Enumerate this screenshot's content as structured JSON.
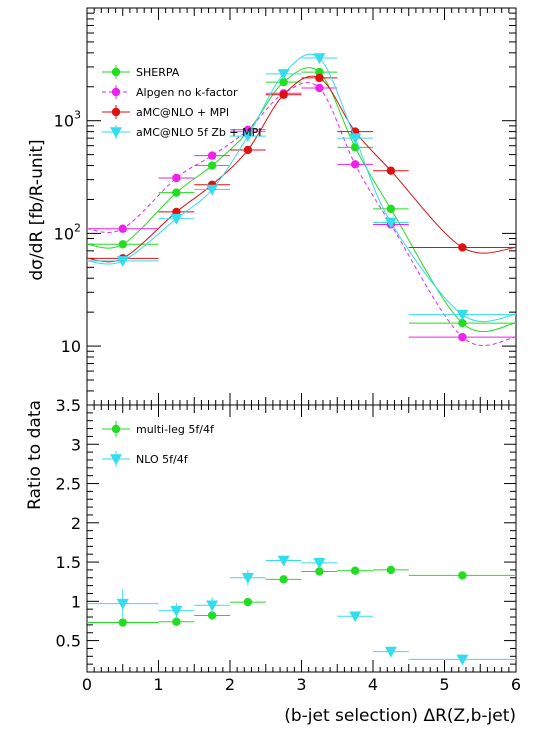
{
  "chart_data": [
    {
      "type": "scatter",
      "panel": "main",
      "ylabel": "dσ/dR [fb/R-unit]",
      "yscale": "log",
      "xlim": [
        0,
        6
      ],
      "ylim": [
        3,
        10000
      ],
      "yticks": [
        {
          "value": 10,
          "label": "10"
        },
        {
          "value": 100,
          "label": "10²"
        },
        {
          "value": 1000,
          "label": "10³"
        }
      ],
      "legend_position": "top-left",
      "series": [
        {
          "name": "SHERPA",
          "color": "#22dd22",
          "marker": "circle",
          "line": "solid",
          "x": [
            0.5,
            1.25,
            1.75,
            2.25,
            2.75,
            3.25,
            3.75,
            4.25,
            5.25
          ],
          "xerr": [
            0.5,
            0.25,
            0.25,
            0.25,
            0.25,
            0.25,
            0.25,
            0.25,
            0.75
          ],
          "y": [
            80,
            230,
            400,
            800,
            2200,
            2700,
            580,
            165,
            16
          ]
        },
        {
          "name": "Alpgen no k-factor",
          "color": "#ee22ee",
          "marker": "circle",
          "line": "dashed",
          "x": [
            0.5,
            1.25,
            1.75,
            2.25,
            2.75,
            3.25,
            3.75,
            4.25,
            5.25
          ],
          "xerr": [
            0.5,
            0.25,
            0.25,
            0.25,
            0.25,
            0.25,
            0.25,
            0.25,
            0.75
          ],
          "y": [
            110,
            310,
            490,
            830,
            1750,
            1950,
            410,
            120,
            12
          ]
        },
        {
          "name": "aMC@NLO + MPI",
          "color": "#dd1111",
          "marker": "circle",
          "line": "solid",
          "x": [
            0.5,
            1.25,
            1.75,
            2.25,
            2.75,
            3.25,
            3.75,
            4.25,
            5.25
          ],
          "xerr": [
            0.5,
            0.25,
            0.25,
            0.25,
            0.25,
            0.25,
            0.25,
            0.25,
            0.75
          ],
          "y": [
            60,
            155,
            270,
            550,
            1700,
            2400,
            800,
            360,
            75
          ]
        },
        {
          "name": "aMC@NLO 5f Zb + MPI",
          "color": "#33ddee",
          "marker": "triangle-down",
          "line": "solid",
          "x": [
            0.5,
            1.25,
            1.75,
            2.25,
            2.75,
            3.25,
            3.75,
            4.25,
            5.25
          ],
          "xerr": [
            0.5,
            0.25,
            0.25,
            0.25,
            0.25,
            0.25,
            0.25,
            0.25,
            0.75
          ],
          "y": [
            57,
            135,
            245,
            730,
            2600,
            3600,
            700,
            125,
            19
          ]
        }
      ]
    },
    {
      "type": "scatter",
      "panel": "ratio",
      "ylabel": "Ratio to data",
      "xlabel": "(b-jet selection) ΔR(Z,b-jet)",
      "xlim": [
        0,
        6
      ],
      "ylim": [
        0.1,
        3.5
      ],
      "xticks": [
        "0",
        "1",
        "2",
        "3",
        "4",
        "5",
        "6"
      ],
      "yticks": [
        "0.5",
        "1",
        "1.5",
        "2",
        "2.5",
        "3",
        "3.5"
      ],
      "legend_position": "top-left",
      "series": [
        {
          "name": "multi-leg 5f/4f",
          "color": "#22dd22",
          "marker": "circle",
          "x": [
            0.5,
            1.25,
            1.75,
            2.25,
            2.75,
            3.25,
            3.75,
            4.25,
            5.25
          ],
          "xerr": [
            0.5,
            0.25,
            0.25,
            0.25,
            0.25,
            0.25,
            0.25,
            0.25,
            0.75
          ],
          "y": [
            0.73,
            0.74,
            0.82,
            0.99,
            1.28,
            1.38,
            1.39,
            1.4,
            1.33
          ],
          "yerr": [
            0.03,
            0.03,
            0.03,
            0.03,
            0.03,
            0.03,
            0.03,
            0.03,
            0.03
          ]
        },
        {
          "name": "NLO       5f/4f",
          "color": "#33ddee",
          "marker": "triangle-down",
          "x": [
            0.5,
            1.25,
            1.75,
            2.25,
            2.75,
            3.25,
            3.75,
            4.25,
            5.25
          ],
          "xerr": [
            0.5,
            0.25,
            0.25,
            0.25,
            0.25,
            0.25,
            0.25,
            0.25,
            0.75
          ],
          "y": [
            0.97,
            0.88,
            0.95,
            1.3,
            1.52,
            1.49,
            0.81,
            0.36,
            0.26
          ],
          "yerr": [
            0.18,
            0.1,
            0.1,
            0.1,
            0.06,
            0.06,
            0.06,
            0.06,
            0.04
          ]
        }
      ]
    }
  ]
}
